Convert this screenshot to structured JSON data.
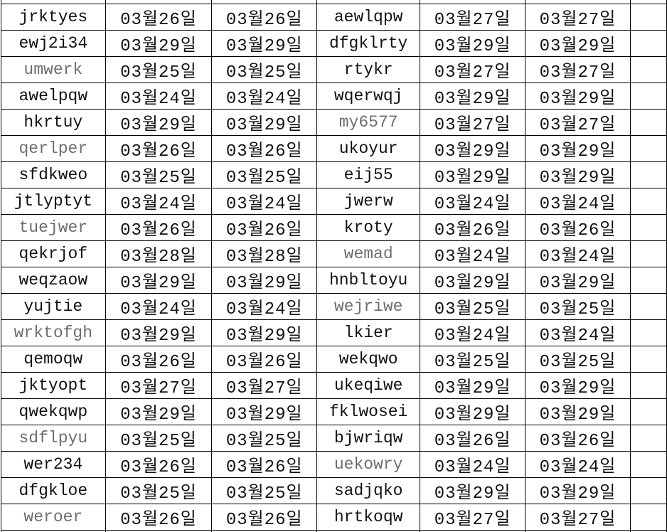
{
  "colors": {
    "background": "#ffffff",
    "border": "#000000",
    "text": "#111111",
    "muted_text": "#6e6e6e"
  },
  "table": {
    "columns": [
      "name",
      "date",
      "date",
      "name",
      "date",
      "date"
    ],
    "rows": [
      [
        "jrktyes",
        "03월26일",
        "03월26일",
        "aewlqpw",
        "03월27일",
        "03월27일"
      ],
      [
        "ewj2i34",
        "03월29일",
        "03월29일",
        "dfgklrty",
        "03월29일",
        "03월29일"
      ],
      [
        "umwerk",
        "03월25일",
        "03월25일",
        "rtykr",
        "03월27일",
        "03월27일"
      ],
      [
        "awelpqw",
        "03월24일",
        "03월24일",
        "wqerwqj",
        "03월29일",
        "03월29일"
      ],
      [
        "hkrtuy",
        "03월29일",
        "03월29일",
        "my6577",
        "03월27일",
        "03월27일"
      ],
      [
        "qerlper",
        "03월26일",
        "03월26일",
        "ukoyur",
        "03월29일",
        "03월29일"
      ],
      [
        "sfdkweo",
        "03월25일",
        "03월25일",
        "eij55",
        "03월29일",
        "03월29일"
      ],
      [
        "jtlyptyt",
        "03월24일",
        "03월24일",
        "jwerw",
        "03월24일",
        "03월24일"
      ],
      [
        "tuejwer",
        "03월26일",
        "03월26일",
        "kroty",
        "03월26일",
        "03월26일"
      ],
      [
        "qekrjof",
        "03월28일",
        "03월28일",
        "wemad",
        "03월24일",
        "03월24일"
      ],
      [
        "weqzaow",
        "03월29일",
        "03월29일",
        "hnbltoyu",
        "03월29일",
        "03월29일"
      ],
      [
        "yujtie",
        "03월24일",
        "03월24일",
        "wejriwe",
        "03월25일",
        "03월25일"
      ],
      [
        "wrktofgh",
        "03월29일",
        "03월29일",
        "lkier",
        "03월24일",
        "03월24일"
      ],
      [
        "qemoqw",
        "03월26일",
        "03월26일",
        "wekqwo",
        "03월25일",
        "03월25일"
      ],
      [
        "jktyopt",
        "03월27일",
        "03월27일",
        "ukeqiwe",
        "03월29일",
        "03월29일"
      ],
      [
        "qwekqwp",
        "03월29일",
        "03월29일",
        "fklwosei",
        "03월29일",
        "03월29일"
      ],
      [
        "sdflpyu",
        "03월25일",
        "03월25일",
        "bjwriqw",
        "03월26일",
        "03월26일"
      ],
      [
        "wer234",
        "03월26일",
        "03월26일",
        "uekowry",
        "03월24일",
        "03월24일"
      ],
      [
        "dfgkloe",
        "03월25일",
        "03월25일",
        "sadjqko",
        "03월29일",
        "03월29일"
      ],
      [
        "weroer",
        "03월26일",
        "03월26일",
        "hrtkoqw",
        "03월27일",
        "03월27일"
      ]
    ],
    "muted_cells": [
      [
        2,
        0
      ],
      [
        5,
        0
      ],
      [
        8,
        0
      ],
      [
        12,
        0
      ],
      [
        16,
        0
      ],
      [
        19,
        0
      ],
      [
        4,
        3
      ],
      [
        9,
        3
      ],
      [
        11,
        3
      ],
      [
        17,
        3
      ]
    ]
  }
}
